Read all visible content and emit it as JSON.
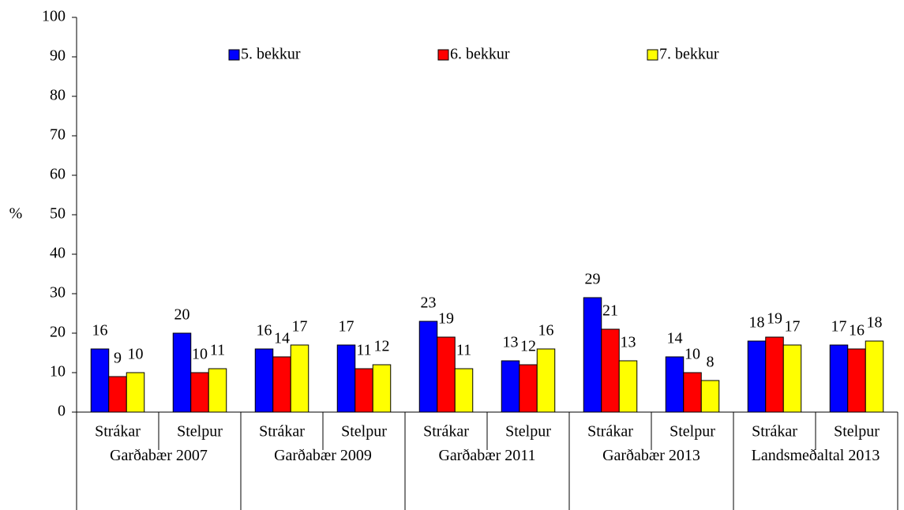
{
  "chart_data": {
    "type": "bar",
    "y_axis_label": "%",
    "groups": [
      {
        "name": "Garðabær 2007",
        "categories": [
          "Strákar",
          "Stelpur"
        ]
      },
      {
        "name": "Garðabær 2009",
        "categories": [
          "Strákar",
          "Stelpur"
        ]
      },
      {
        "name": "Garðabær 2011",
        "categories": [
          "Strákar",
          "Stelpur"
        ]
      },
      {
        "name": "Garðabær 2013",
        "categories": [
          "Strákar",
          "Stelpur"
        ]
      },
      {
        "name": "Landsmeðaltal 2013",
        "categories": [
          "Strákar",
          "Stelpur"
        ]
      }
    ],
    "series": [
      {
        "name": "5. bekkur",
        "color": "#0000ff",
        "values": [
          16,
          20,
          16,
          17,
          23,
          13,
          29,
          14,
          18,
          17
        ]
      },
      {
        "name": "6. bekkur",
        "color": "#ff0000",
        "values": [
          9,
          10,
          14,
          11,
          19,
          12,
          21,
          10,
          19,
          16
        ]
      },
      {
        "name": "7. bekkur",
        "color": "#ffff00",
        "values": [
          10,
          11,
          17,
          12,
          11,
          16,
          13,
          8,
          17,
          18
        ]
      }
    ],
    "ylim": [
      0,
      100
    ],
    "yticks": [
      0,
      10,
      20,
      30,
      40,
      50,
      60,
      70,
      80,
      90,
      100
    ],
    "grid": false,
    "legend": "top",
    "data_labels": true
  }
}
